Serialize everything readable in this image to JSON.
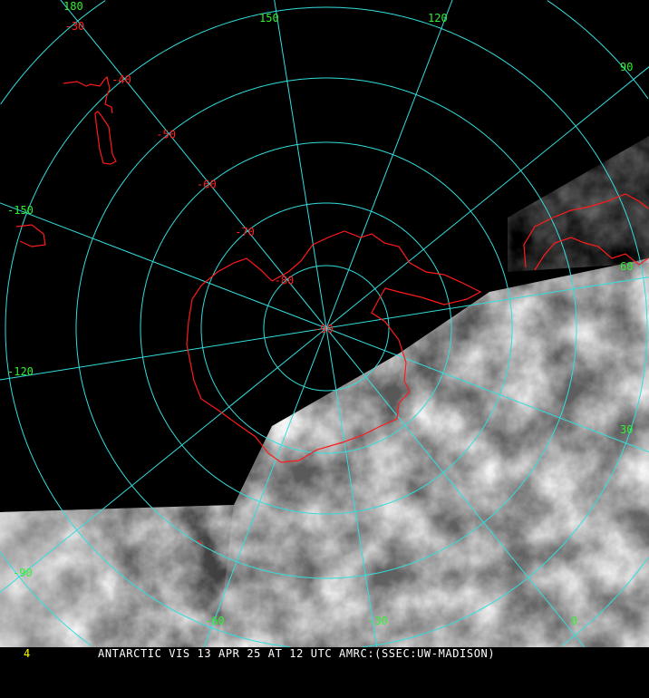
{
  "caption": "ANTARCTIC VIS 13 APR 25 AT 12 UTC AMRC:(SSEC:UW-MADISON)",
  "frame_number": "4",
  "colors": {
    "grid": "#33dddd",
    "coast": "#ff1a1a",
    "meridian_label": "#33ee33",
    "latitude_label": "#ff2020",
    "background": "#000000",
    "frame_number": "#ffff00"
  },
  "projection": "south-polar-stereographic",
  "meridians": [
    {
      "lon": 180,
      "label": "180"
    },
    {
      "lon": 150,
      "label": "150"
    },
    {
      "lon": 120,
      "label": "120"
    },
    {
      "lon": 90,
      "label": "90"
    },
    {
      "lon": 60,
      "label": "60"
    },
    {
      "lon": 30,
      "label": "30"
    },
    {
      "lon": 0,
      "label": "0"
    },
    {
      "lon": -30,
      "label": "-30"
    },
    {
      "lon": -60,
      "label": "-60"
    },
    {
      "lon": -90,
      "label": "-90"
    },
    {
      "lon": -120,
      "label": "-120"
    },
    {
      "lon": -150,
      "label": "-150"
    }
  ],
  "latitudes": [
    {
      "lat": -90,
      "label": "-90"
    },
    {
      "lat": -80,
      "label": "-80"
    },
    {
      "lat": -70,
      "label": "-70"
    },
    {
      "lat": -60,
      "label": "-60"
    },
    {
      "lat": -50,
      "label": "-50"
    },
    {
      "lat": -40,
      "label": "-40"
    },
    {
      "lat": -30,
      "label": "-30"
    }
  ]
}
